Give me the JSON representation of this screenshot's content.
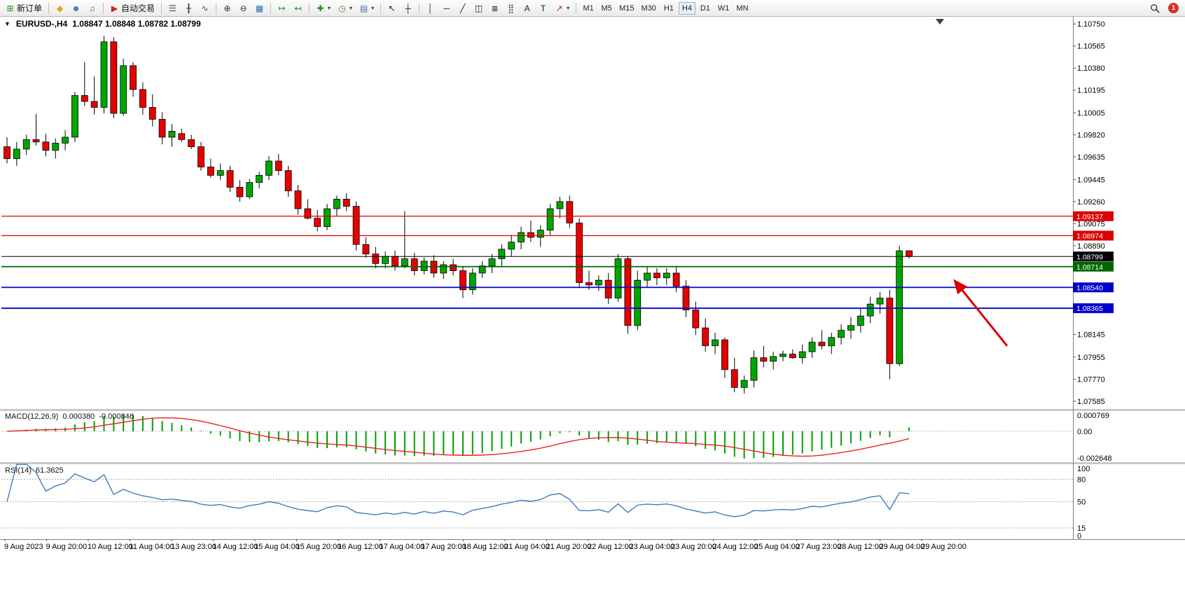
{
  "toolbar": {
    "timeframes": [
      "M1",
      "M5",
      "M15",
      "M30",
      "H1",
      "H4",
      "D1",
      "W1",
      "MN"
    ],
    "active_timeframe": "H4",
    "badge_count": "1",
    "items": [
      {
        "name": "new-order",
        "icon": "new_order",
        "label": "新订单",
        "color": "#1b8a1b"
      },
      {
        "sep": true
      },
      {
        "name": "metaquotes",
        "icon": "diamond",
        "color": "#e8a21a"
      },
      {
        "name": "profile",
        "icon": "profile",
        "color": "#4a6fa5"
      },
      {
        "name": "market-sounds",
        "icon": "sound",
        "color": "#7a55b5"
      },
      {
        "sep": true
      },
      {
        "name": "auto-trading",
        "icon": "auto_trading",
        "label": "自动交易",
        "color": "#cc2222"
      },
      {
        "sep": true
      },
      {
        "name": "bar-chart",
        "icon": "bar_chart",
        "color": "#444444"
      },
      {
        "name": "candlestick-chart",
        "icon": "candle_chart",
        "color": "#444444"
      },
      {
        "name": "line-chart",
        "icon": "line_chart",
        "color": "#444444"
      },
      {
        "sep": true
      },
      {
        "name": "zoom-in",
        "icon": "zoom_in",
        "color": "#333333"
      },
      {
        "name": "zoom-out",
        "icon": "zoom_out",
        "color": "#333333"
      },
      {
        "name": "tile-windows",
        "icon": "tile_windows",
        "color": "#2a6db5"
      },
      {
        "sep": true
      },
      {
        "name": "auto-scroll",
        "icon": "auto_scroll",
        "color": "#1b8a1b"
      },
      {
        "name": "chart-shift",
        "icon": "chart_shift",
        "color": "#1b8a1b"
      },
      {
        "sep": true
      },
      {
        "name": "indicators",
        "icon": "indicators",
        "color": "#1b8a1b",
        "dropdown": true
      },
      {
        "name": "periods",
        "icon": "periods",
        "color": "#8a6d3b",
        "dropdown": true
      },
      {
        "name": "templates",
        "icon": "templates",
        "color": "#4a6fa5",
        "dropdown": true
      },
      {
        "sep": true
      },
      {
        "name": "cursor",
        "icon": "cursor",
        "color": "#222222"
      },
      {
        "name": "crosshair",
        "icon": "crosshair",
        "color": "#222222"
      },
      {
        "sep": true
      },
      {
        "name": "vertical-line",
        "icon": "vline",
        "color": "#222222"
      },
      {
        "name": "horizontal-line",
        "icon": "hline",
        "color": "#222222"
      },
      {
        "name": "trendline",
        "icon": "trendline",
        "color": "#222222"
      },
      {
        "name": "equidistant-channel",
        "icon": "channel",
        "color": "#222222"
      },
      {
        "name": "fibonacci",
        "icon": "fibonacci",
        "color": "#222222"
      },
      {
        "name": "grid",
        "icon": "grid",
        "color": "#222222"
      },
      {
        "name": "text",
        "icon": "text",
        "color": "#222222"
      },
      {
        "name": "text-label",
        "icon": "label",
        "color": "#222222"
      },
      {
        "name": "arrows",
        "icon": "arrow_tool",
        "color": "#cc2222",
        "dropdown": true
      },
      {
        "sep": true
      }
    ]
  },
  "icons": {
    "oct": "▼",
    "new_order": "⊞",
    "diamond": "◆",
    "profile": "☻",
    "sound": "♫",
    "auto_trading": "▶",
    "bar_chart": "☰",
    "candle_chart": "╂",
    "line_chart": "∿",
    "zoom_in": "⊕",
    "zoom_out": "⊖",
    "tile_windows": "▦",
    "auto_scroll": "↦",
    "chart_shift": "↤",
    "indicators": "✚",
    "periods": "◷",
    "templates": "▤",
    "cursor": "↖",
    "crosshair": "┼",
    "vline": "│",
    "hline": "─",
    "trendline": "╱",
    "channel": "◫",
    "fibonacci": "≣",
    "grid": "⣿",
    "text": "A",
    "label": "T",
    "arrow_tool": "↗",
    "dropdown": "▾"
  },
  "chart": {
    "symbol_period": "EURUSD-,H4",
    "ohlc": "1.08847 1.08848 1.08782 1.08799"
  },
  "price_axis": {
    "labels": [
      "1.10750",
      "1.10565",
      "1.10380",
      "1.10195",
      "1.10005",
      "1.09820",
      "1.09635",
      "1.09445",
      "1.09260",
      "1.09075",
      "1.08890",
      "1.08145",
      "1.07955",
      "1.07770",
      "1.07585"
    ]
  },
  "levels": [
    {
      "price": 1.09137,
      "label": "1.09137",
      "color": "#dd0000",
      "width": 1.2
    },
    {
      "price": 1.08974,
      "label": "1.08974",
      "color": "#dd0000",
      "width": 1.2
    },
    {
      "price": 1.08799,
      "label": "1.08799",
      "color": "#000000",
      "width": 1
    },
    {
      "price": 1.08714,
      "label": "1.08714",
      "color": "#006600",
      "width": 1.8
    },
    {
      "price": 1.0854,
      "label": "1.08540",
      "color": "#0000cc",
      "width": 1.8
    },
    {
      "price": 1.08365,
      "label": "1.08365",
      "color": "#0000cc",
      "width": 1.8
    }
  ],
  "macd": {
    "name": "MACD(12,26,9)",
    "value_main": "0.000380",
    "value_signal": "-0.000846",
    "axis_labels": [
      "0.000769",
      "0.00",
      "-0.002648"
    ]
  },
  "rsi": {
    "name": "RSI(14)",
    "value": "61.3625",
    "axis_labels": [
      "100",
      "80",
      "50",
      "15",
      "0"
    ],
    "levels": [
      80,
      50,
      15
    ]
  },
  "time_axis": {
    "labels": [
      "9 Aug 2023",
      "9 Aug 20:00",
      "10 Aug 12:00",
      "11 Aug 04:00",
      "13 Aug 23:00",
      "14 Aug 12:00",
      "15 Aug 04:00",
      "15 Aug 20:00",
      "16 Aug 12:00",
      "17 Aug 04:00",
      "17 Aug 20:00",
      "18 Aug 12:00",
      "21 Aug 04:00",
      "21 Aug 20:00",
      "22 Aug 12:00",
      "23 Aug 04:00",
      "23 Aug 20:00",
      "24 Aug 12:00",
      "25 Aug 04:00",
      "27 Aug 23:00",
      "28 Aug 12:00",
      "29 Aug 04:00",
      "29 Aug 20:00"
    ]
  },
  "annotations": {
    "arrow_color": "#dd0000"
  },
  "colors": {
    "up": "#00a600",
    "down": "#e60000",
    "wick": "#000000",
    "macd_hist": "#00a000",
    "macd_signal": "#ee2222",
    "rsi_line": "#3e7bc0"
  },
  "chart_data": {
    "type": "candlestick",
    "symbol": "EURUSD",
    "timeframe": "H4",
    "price_range": [
      1.0752,
      1.1081
    ],
    "candles": [
      [
        1.0972,
        1.098,
        1.0958,
        1.0962
      ],
      [
        1.0962,
        1.0976,
        1.0956,
        1.097
      ],
      [
        1.097,
        1.0982,
        1.0965,
        1.0978
      ],
      [
        1.0978,
        1.09995,
        1.0973,
        1.0976
      ],
      [
        1.0976,
        1.0983,
        1.0964,
        1.0969
      ],
      [
        1.0969,
        1.0979,
        1.0962,
        1.0975
      ],
      [
        1.0975,
        1.0986,
        1.0969,
        1.098
      ],
      [
        1.098,
        1.1018,
        1.0976,
        1.1015
      ],
      [
        1.1015,
        1.1043,
        1.1006,
        1.101
      ],
      [
        1.101,
        1.1031,
        1.0999,
        1.1005
      ],
      [
        1.1005,
        1.1065,
        1.1,
        1.106
      ],
      [
        1.106,
        1.1064,
        1.0996,
        1.1
      ],
      [
        1.1,
        1.1046,
        1.0998,
        1.104
      ],
      [
        1.104,
        1.1043,
        1.1014,
        1.102
      ],
      [
        1.102,
        1.1026,
        1.0999,
        1.1005
      ],
      [
        1.1005,
        1.1016,
        1.0989,
        1.0995
      ],
      [
        1.0995,
        1.1001,
        1.0974,
        1.098
      ],
      [
        1.098,
        1.0991,
        1.0972,
        1.0985
      ],
      [
        1.0983,
        1.0987,
        1.0976,
        1.0978
      ],
      [
        1.0978,
        1.0982,
        1.097,
        1.0972
      ],
      [
        1.0972,
        1.0976,
        1.0952,
        1.0955
      ],
      [
        1.0955,
        1.0962,
        1.0946,
        1.0948
      ],
      [
        1.0948,
        1.0958,
        1.0944,
        1.0952
      ],
      [
        1.0952,
        1.0956,
        1.0934,
        1.0938
      ],
      [
        1.0938,
        1.0944,
        1.0926,
        1.093
      ],
      [
        1.093,
        1.0945,
        1.0928,
        1.0942
      ],
      [
        1.0942,
        1.0951,
        1.0937,
        1.0948
      ],
      [
        1.0948,
        1.0964,
        1.0944,
        1.096
      ],
      [
        1.096,
        1.0966,
        1.0948,
        1.0952
      ],
      [
        1.0952,
        1.0956,
        1.093,
        1.0935
      ],
      [
        1.0935,
        1.094,
        1.0915,
        1.092
      ],
      [
        1.092,
        1.0928,
        1.0911,
        1.0912
      ],
      [
        1.0912,
        1.0919,
        1.0901,
        1.0905
      ],
      [
        1.0905,
        1.0924,
        1.0902,
        1.092
      ],
      [
        1.092,
        1.0931,
        1.0914,
        1.0928
      ],
      [
        1.0928,
        1.0933,
        1.0918,
        1.0922
      ],
      [
        1.0922,
        1.0926,
        1.0885,
        1.089
      ],
      [
        1.089,
        1.0896,
        1.0879,
        1.0882
      ],
      [
        1.0882,
        1.0888,
        1.087,
        1.0874
      ],
      [
        1.0874,
        1.0884,
        1.087,
        1.088
      ],
      [
        1.088,
        1.0885,
        1.0868,
        1.0872
      ],
      [
        1.0872,
        1.0918,
        1.087,
        1.0878
      ],
      [
        1.0878,
        1.0883,
        1.0864,
        1.0868
      ],
      [
        1.0868,
        1.0879,
        1.0865,
        1.0876
      ],
      [
        1.0876,
        1.0881,
        1.0862,
        1.0866
      ],
      [
        1.0866,
        1.0876,
        1.0861,
        1.0873
      ],
      [
        1.0873,
        1.0878,
        1.0864,
        1.0868
      ],
      [
        1.0868,
        1.0872,
        1.0845,
        1.0852
      ],
      [
        1.0852,
        1.087,
        1.0848,
        1.0866
      ],
      [
        1.0866,
        1.0876,
        1.0862,
        1.0872
      ],
      [
        1.0872,
        1.0882,
        1.0866,
        1.0878
      ],
      [
        1.0878,
        1.089,
        1.0872,
        1.0886
      ],
      [
        1.0886,
        1.0898,
        1.088,
        1.0892
      ],
      [
        1.0892,
        1.0905,
        1.0886,
        1.09
      ],
      [
        1.09,
        1.091,
        1.0892,
        1.0896
      ],
      [
        1.0896,
        1.0906,
        1.0888,
        1.0902
      ],
      [
        1.0902,
        1.0924,
        1.0898,
        1.092
      ],
      [
        1.092,
        1.093,
        1.0912,
        1.0926
      ],
      [
        1.0926,
        1.0931,
        1.0904,
        1.0908
      ],
      [
        1.0908,
        1.0912,
        1.0854,
        1.0858
      ],
      [
        1.0858,
        1.0868,
        1.0852,
        1.0856
      ],
      [
        1.0856,
        1.0864,
        1.0851,
        1.086
      ],
      [
        1.086,
        1.0866,
        1.084,
        1.0845
      ],
      [
        1.0845,
        1.0882,
        1.0842,
        1.0878
      ],
      [
        1.0878,
        1.088,
        1.0815,
        1.0822
      ],
      [
        1.0822,
        1.0868,
        1.0818,
        1.086
      ],
      [
        1.086,
        1.0872,
        1.0854,
        1.0866
      ],
      [
        1.0866,
        1.087,
        1.0856,
        1.0862
      ],
      [
        1.0862,
        1.087,
        1.0856,
        1.0866
      ],
      [
        1.0866,
        1.0872,
        1.085,
        1.0855
      ],
      [
        1.0855,
        1.086,
        1.0829,
        1.0835
      ],
      [
        1.0835,
        1.0842,
        1.0814,
        1.082
      ],
      [
        1.082,
        1.0828,
        1.08,
        1.0805
      ],
      [
        1.0805,
        1.0816,
        1.0798,
        1.081
      ],
      [
        1.081,
        1.0812,
        1.0778,
        1.0785
      ],
      [
        1.0785,
        1.0795,
        1.0766,
        1.077
      ],
      [
        1.077,
        1.078,
        1.0765,
        1.0776
      ],
      [
        1.0776,
        1.0801,
        1.077,
        1.0795
      ],
      [
        1.0795,
        1.0805,
        1.0787,
        1.0792
      ],
      [
        1.0792,
        1.08,
        1.0785,
        1.0796
      ],
      [
        1.0796,
        1.0801,
        1.0792,
        1.0798
      ],
      [
        1.0798,
        1.0802,
        1.0794,
        1.0795
      ],
      [
        1.0795,
        1.0806,
        1.079,
        1.08
      ],
      [
        1.08,
        1.0812,
        1.0795,
        1.0808
      ],
      [
        1.0808,
        1.0818,
        1.0802,
        1.0805
      ],
      [
        1.0805,
        1.0816,
        1.0798,
        1.0812
      ],
      [
        1.0812,
        1.0823,
        1.0806,
        1.0818
      ],
      [
        1.0818,
        1.0829,
        1.0811,
        1.0822
      ],
      [
        1.0822,
        1.0836,
        1.0816,
        1.083
      ],
      [
        1.083,
        1.0846,
        1.0824,
        1.084
      ],
      [
        1.084,
        1.085,
        1.0832,
        1.0845
      ],
      [
        1.0845,
        1.0852,
        1.0777,
        1.079
      ],
      [
        1.079,
        1.0889,
        1.0788,
        1.08847
      ],
      [
        1.08847,
        1.08848,
        1.08782,
        1.08799
      ]
    ]
  }
}
